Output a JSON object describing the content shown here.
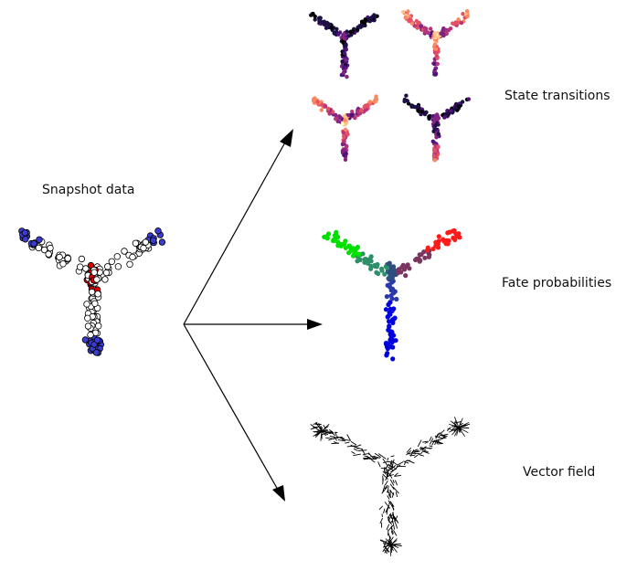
{
  "labels": {
    "snapshot": "Snapshot data",
    "transitions": "State transitions",
    "fates": "Fate probabilities",
    "vector": "Vector field"
  },
  "colors": {
    "background": "#ffffff",
    "arrow": "#000000",
    "snapshot_terminal": "#3b3bd6",
    "snapshot_root": "#e00000",
    "snapshot_other": "#ffffff",
    "fate_left": "#00e000",
    "fate_right": "#ff1a1a",
    "fate_bottom": "#0000dd",
    "fate_mixed": "#2e4f80",
    "colormap": "magma"
  },
  "icons": {
    "arrow_head": "arrow-head-icon"
  }
}
